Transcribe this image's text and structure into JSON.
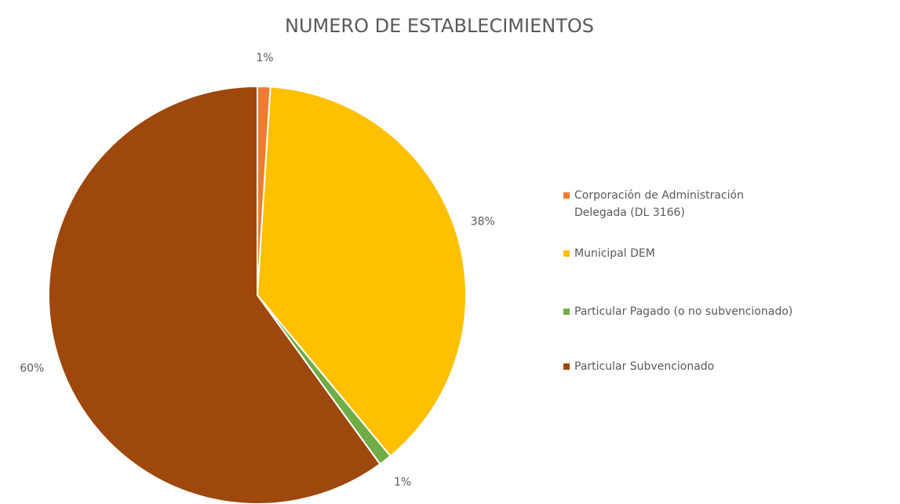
{
  "chart_data": {
    "type": "pie",
    "title": "NUMERO DE ESTABLECIMIENTOS",
    "categories": [
      "Corporación de Administración Delegada (DL 3166)",
      "Municipal DEM",
      "Particular Pagado (o no subvencionado)",
      "Particular Subvencionado"
    ],
    "values": [
      1,
      38,
      1,
      60
    ],
    "value_labels": [
      "1%",
      "38%",
      "1%",
      "60%"
    ],
    "colors": [
      "#ed7d31",
      "#ffc000",
      "#70ad47",
      "#9e480e"
    ],
    "legend": "right"
  }
}
